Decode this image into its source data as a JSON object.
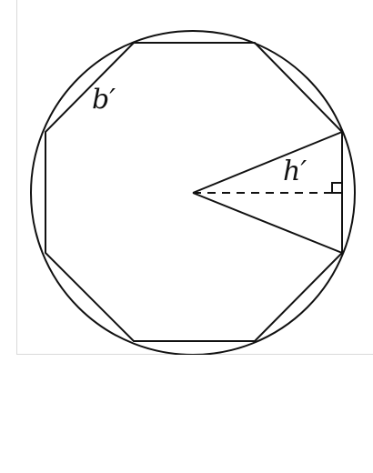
{
  "diagram": {
    "labels": {
      "b": "b′",
      "h": "h′"
    },
    "elements": {
      "outer_shape": "circle",
      "inner_shape": "octagon",
      "triangle": "isosceles-triangle",
      "height_line": "dashed",
      "right_angle_marker": "square"
    }
  }
}
